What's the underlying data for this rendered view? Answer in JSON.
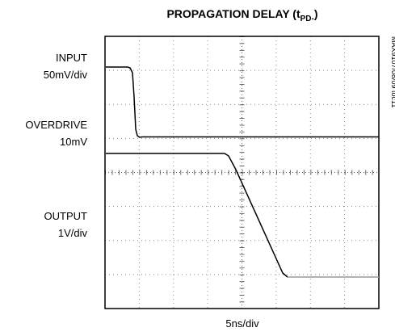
{
  "title": {
    "main": "PROPAGATION DELAY (t",
    "subscript": "PD-",
    "close": ")"
  },
  "labels": {
    "input": "INPUT",
    "input_scale": "50mV/div",
    "overdrive": "OVERDRIVE",
    "overdrive_value": "10mV",
    "output": "OUTPUT",
    "output_scale": "1V/div",
    "time_scale": "5ns/div",
    "figure_id": "MAX9107/08/09 toc11"
  }
}
